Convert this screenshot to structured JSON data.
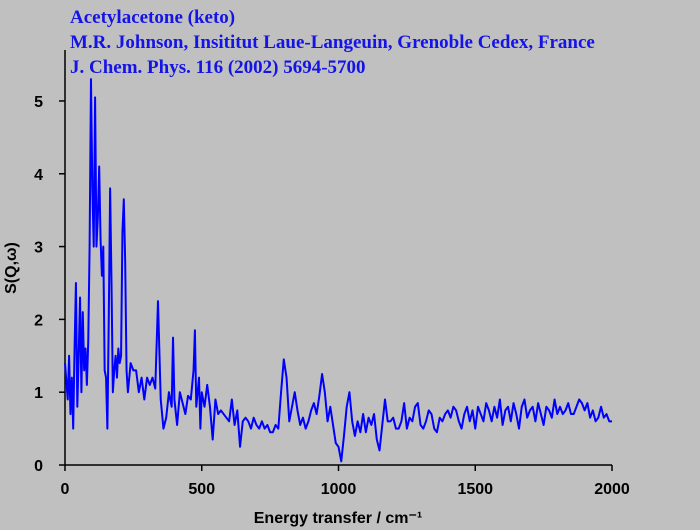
{
  "chart_data": {
    "type": "line",
    "title": "Acetylacetone (keto)",
    "subtitle": [
      "M.R. Johnson, Insititut Laue-Langeuin, Grenoble Cedex, France",
      "J. Chem. Phys. 116 (2002) 5694-5700"
    ],
    "x_label": "Energy transfer / cm⁻¹",
    "y_label": "S(Q,ω)",
    "x": [
      0,
      10,
      15,
      20,
      25,
      30,
      35,
      40,
      45,
      50,
      55,
      60,
      65,
      70,
      75,
      80,
      85,
      90,
      95,
      100,
      105,
      110,
      115,
      120,
      125,
      130,
      135,
      140,
      145,
      150,
      155,
      160,
      165,
      170,
      175,
      180,
      185,
      190,
      195,
      200,
      205,
      210,
      215,
      220,
      225,
      230,
      240,
      250,
      260,
      270,
      280,
      290,
      300,
      310,
      320,
      330,
      340,
      350,
      360,
      370,
      380,
      390,
      395,
      400,
      410,
      420,
      430,
      440,
      450,
      460,
      470,
      475,
      480,
      490,
      495,
      500,
      510,
      520,
      530,
      540,
      550,
      560,
      570,
      580,
      590,
      600,
      610,
      620,
      630,
      640,
      650,
      660,
      670,
      680,
      690,
      700,
      710,
      720,
      730,
      740,
      750,
      760,
      770,
      780,
      790,
      800,
      810,
      820,
      830,
      840,
      850,
      860,
      870,
      880,
      890,
      900,
      910,
      920,
      930,
      940,
      950,
      960,
      970,
      980,
      990,
      1000,
      1010,
      1020,
      1030,
      1040,
      1050,
      1060,
      1070,
      1080,
      1090,
      1100,
      1110,
      1120,
      1130,
      1140,
      1150,
      1160,
      1170,
      1180,
      1190,
      1200,
      1210,
      1220,
      1230,
      1240,
      1250,
      1260,
      1270,
      1280,
      1290,
      1300,
      1310,
      1320,
      1330,
      1340,
      1350,
      1360,
      1370,
      1380,
      1390,
      1400,
      1410,
      1420,
      1430,
      1440,
      1450,
      1460,
      1470,
      1480,
      1490,
      1500,
      1510,
      1520,
      1530,
      1540,
      1550,
      1560,
      1570,
      1580,
      1590,
      1600,
      1610,
      1620,
      1630,
      1640,
      1650,
      1660,
      1670,
      1680,
      1690,
      1700,
      1710,
      1720,
      1730,
      1740,
      1750,
      1760,
      1770,
      1780,
      1790,
      1800,
      1810,
      1820,
      1830,
      1840,
      1850,
      1860,
      1870,
      1880,
      1890,
      1900,
      1910,
      1920,
      1930,
      1940,
      1950,
      1960,
      1970,
      1980,
      1990,
      2000
    ],
    "series": [
      {
        "color": "#0000ff",
        "values": [
          1.4,
          0.9,
          1.5,
          0.7,
          1.2,
          0.5,
          1.6,
          2.5,
          0.8,
          1.5,
          2.3,
          1.0,
          2.1,
          1.3,
          1.6,
          1.1,
          1.7,
          3.0,
          5.3,
          3.8,
          3.0,
          5.05,
          3.0,
          3.4,
          4.1,
          3.1,
          2.6,
          3.0,
          1.3,
          1.2,
          0.5,
          2.0,
          3.8,
          2.5,
          1.0,
          1.3,
          1.5,
          1.2,
          1.6,
          1.4,
          1.5,
          3.2,
          3.65,
          2.8,
          1.3,
          1.0,
          1.4,
          1.3,
          1.3,
          1.0,
          1.2,
          0.9,
          1.2,
          1.1,
          1.2,
          1.05,
          2.25,
          0.9,
          0.5,
          0.65,
          1.0,
          0.8,
          1.75,
          0.9,
          0.55,
          1.0,
          0.85,
          0.7,
          0.95,
          0.9,
          1.3,
          1.85,
          0.8,
          1.2,
          0.5,
          1.0,
          0.8,
          1.1,
          0.8,
          0.35,
          0.9,
          0.7,
          0.75,
          0.7,
          0.65,
          0.6,
          0.9,
          0.55,
          0.75,
          0.25,
          0.6,
          0.65,
          0.6,
          0.5,
          0.65,
          0.55,
          0.5,
          0.6,
          0.5,
          0.55,
          0.45,
          0.45,
          0.55,
          0.5,
          1.0,
          1.45,
          1.2,
          0.6,
          0.8,
          1.0,
          0.75,
          0.55,
          0.65,
          0.5,
          0.6,
          0.75,
          0.85,
          0.7,
          0.95,
          1.25,
          1.0,
          0.6,
          0.8,
          0.55,
          0.3,
          0.25,
          0.05,
          0.4,
          0.8,
          1.0,
          0.6,
          0.4,
          0.6,
          0.45,
          0.7,
          0.45,
          0.65,
          0.55,
          0.7,
          0.35,
          0.2,
          0.55,
          0.9,
          0.6,
          0.6,
          0.65,
          0.5,
          0.5,
          0.6,
          0.85,
          0.5,
          0.65,
          0.6,
          0.8,
          0.85,
          0.55,
          0.5,
          0.6,
          0.75,
          0.7,
          0.5,
          0.45,
          0.65,
          0.6,
          0.7,
          0.75,
          0.65,
          0.8,
          0.75,
          0.6,
          0.5,
          0.7,
          0.8,
          0.6,
          0.75,
          0.5,
          0.8,
          0.7,
          0.6,
          0.85,
          0.75,
          0.6,
          0.8,
          0.65,
          0.9,
          0.55,
          0.75,
          0.8,
          0.6,
          0.85,
          0.7,
          0.5,
          0.8,
          0.9,
          0.65,
          0.75,
          0.8,
          0.6,
          0.85,
          0.7,
          0.55,
          0.8,
          0.75,
          0.65,
          0.9,
          0.7,
          0.8,
          0.7,
          0.75,
          0.85,
          0.7,
          0.7,
          0.8,
          0.9,
          0.85,
          0.75,
          0.85,
          0.65,
          0.75,
          0.6,
          0.65,
          0.8,
          0.65,
          0.7,
          0.6,
          0.6
        ]
      }
    ],
    "xlim": [
      0,
      2000
    ],
    "xticks": [
      0,
      500,
      1000,
      1500,
      2000
    ],
    "ylim": [
      0,
      5.7
    ],
    "yticks": [
      0,
      1,
      2,
      3,
      4,
      5
    ],
    "grid": false
  }
}
